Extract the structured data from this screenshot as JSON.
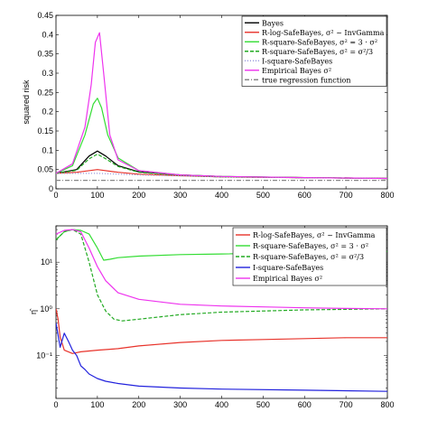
{
  "chart_data": [
    {
      "type": "line",
      "ylabel": "squared risk",
      "xlim": [
        0,
        800
      ],
      "ylim": [
        0,
        0.45
      ],
      "x_ticks": [
        "0",
        "100",
        "200",
        "300",
        "400",
        "500",
        "600",
        "700",
        "800"
      ],
      "y_ticks": [
        "0",
        "0.05",
        "0.1",
        "0.15",
        "0.2",
        "0.25",
        "0.3",
        "0.35",
        "0.4",
        "0.45"
      ],
      "legend_position": "top-right",
      "series": [
        {
          "name": "Bayes",
          "color": "#000000",
          "dash": "solid",
          "x": [
            0,
            50,
            80,
            100,
            120,
            150,
            200,
            300,
            400,
            600,
            800
          ],
          "y": [
            0.04,
            0.05,
            0.085,
            0.098,
            0.085,
            0.06,
            0.044,
            0.036,
            0.032,
            0.029,
            0.027
          ]
        },
        {
          "name": "R-log-SafeBayes, σ² ~ InvGamma",
          "color": "#e8332b",
          "dash": "solid",
          "x": [
            0,
            50,
            100,
            150,
            200,
            300,
            400,
            600,
            800
          ],
          "y": [
            0.04,
            0.043,
            0.05,
            0.043,
            0.038,
            0.034,
            0.031,
            0.029,
            0.027
          ]
        },
        {
          "name": "R-square-SafeBayes, σ² = 3 · σ²",
          "color": "#33dd33",
          "dash": "solid",
          "x": [
            0,
            40,
            70,
            90,
            100,
            110,
            125,
            150,
            200,
            300,
            400,
            600,
            800
          ],
          "y": [
            0.04,
            0.06,
            0.14,
            0.22,
            0.235,
            0.21,
            0.14,
            0.08,
            0.047,
            0.036,
            0.032,
            0.029,
            0.027
          ]
        },
        {
          "name": "R-square-SafeBayes, σ² = σ²/3",
          "color": "#22aa22",
          "dash": "dashed",
          "x": [
            0,
            50,
            80,
            100,
            120,
            150,
            200,
            300,
            400,
            600,
            800
          ],
          "y": [
            0.04,
            0.048,
            0.078,
            0.09,
            0.078,
            0.058,
            0.043,
            0.035,
            0.031,
            0.029,
            0.027
          ]
        },
        {
          "name": "I-square-SafeBayes",
          "color": "#9999dd",
          "dash": "dotted",
          "x": [
            0,
            100,
            200,
            400,
            800
          ],
          "y": [
            0.04,
            0.04,
            0.036,
            0.031,
            0.027
          ]
        },
        {
          "name": "Empirical Bayes σ²",
          "color": "#ee33ee",
          "dash": "solid",
          "x": [
            0,
            40,
            70,
            85,
            95,
            105,
            115,
            130,
            150,
            200,
            300,
            400,
            600,
            800
          ],
          "y": [
            0.04,
            0.065,
            0.16,
            0.27,
            0.38,
            0.405,
            0.3,
            0.14,
            0.075,
            0.047,
            0.036,
            0.032,
            0.029,
            0.027
          ]
        },
        {
          "name": "true regression function",
          "color": "#888888",
          "dash": "dashdot",
          "x": [
            0,
            800
          ],
          "y": [
            0.022,
            0.022
          ]
        }
      ]
    },
    {
      "type": "line",
      "ylabel": "η̂",
      "yscale": "log",
      "xlim": [
        0,
        800
      ],
      "ylim": [
        0.012,
        60
      ],
      "x_ticks": [
        "0",
        "100",
        "200",
        "300",
        "400",
        "500",
        "600",
        "700",
        "800"
      ],
      "y_tick_values": [
        0.1,
        1,
        10
      ],
      "y_ticks": [
        "10⁻¹",
        "10⁰",
        "10¹"
      ],
      "legend_position": "top-right",
      "series": [
        {
          "name": "R-log-SafeBayes, σ² ~ InvGamma",
          "color": "#e8332b",
          "dash": "solid",
          "x": [
            0,
            5,
            10,
            20,
            40,
            60,
            100,
            150,
            200,
            300,
            400,
            500,
            600,
            700,
            800
          ],
          "y": [
            1.0,
            0.6,
            0.25,
            0.13,
            0.11,
            0.12,
            0.13,
            0.14,
            0.16,
            0.19,
            0.21,
            0.22,
            0.23,
            0.24,
            0.24
          ]
        },
        {
          "name": "R-square-SafeBayes, σ² = 3 · σ²",
          "color": "#33dd33",
          "dash": "solid",
          "x": [
            0,
            20,
            40,
            60,
            80,
            100,
            115,
            130,
            150,
            200,
            300,
            400,
            600,
            800
          ],
          "y": [
            30,
            45,
            50,
            48,
            40,
            20,
            11,
            11.5,
            12.5,
            13.5,
            14.5,
            15,
            16,
            17
          ]
        },
        {
          "name": "R-square-SafeBayes, σ² = σ²/3",
          "color": "#22aa22",
          "dash": "dashed",
          "x": [
            0,
            20,
            40,
            60,
            80,
            100,
            120,
            140,
            160,
            200,
            300,
            400,
            600,
            800
          ],
          "y": [
            30,
            45,
            50,
            40,
            10,
            2,
            0.9,
            0.6,
            0.55,
            0.6,
            0.75,
            0.85,
            0.95,
            1.0
          ]
        },
        {
          "name": "I-square-SafeBayes",
          "color": "#2222dd",
          "dash": "solid",
          "x": [
            0,
            10,
            20,
            30,
            40,
            50,
            60,
            70,
            80,
            100,
            120,
            150,
            200,
            300,
            400,
            600,
            800
          ],
          "y": [
            0.5,
            0.15,
            0.3,
            0.2,
            0.13,
            0.1,
            0.06,
            0.05,
            0.04,
            0.032,
            0.028,
            0.025,
            0.022,
            0.02,
            0.019,
            0.018,
            0.017
          ]
        },
        {
          "name": "Empirical Bayes σ²",
          "color": "#ee33ee",
          "dash": "solid",
          "x": [
            0,
            20,
            40,
            60,
            80,
            100,
            120,
            150,
            200,
            300,
            400,
            500,
            600,
            700,
            800
          ],
          "y": [
            40,
            48,
            50,
            45,
            20,
            8,
            4,
            2.2,
            1.6,
            1.25,
            1.15,
            1.1,
            1.05,
            1.02,
            1.0
          ]
        }
      ]
    }
  ]
}
